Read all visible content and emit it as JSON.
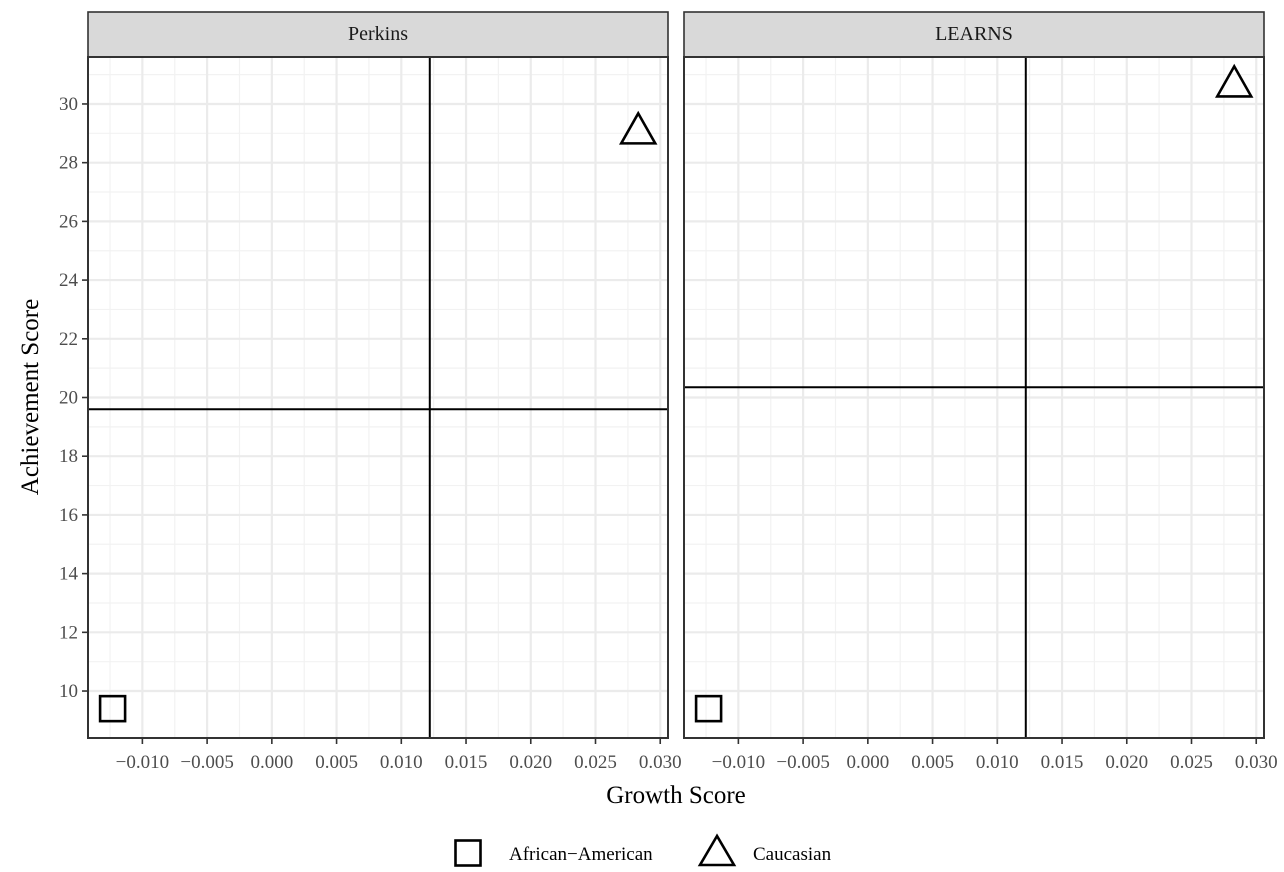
{
  "chart_data": {
    "type": "scatter",
    "xlabel": "Growth Score",
    "ylabel": "Achievement Score",
    "xlim": [
      -0.0142,
      0.0306
    ],
    "ylim": [
      8.4,
      31.6
    ],
    "x_ticks": [
      -0.01,
      -0.005,
      0.0,
      0.005,
      0.01,
      0.015,
      0.02,
      0.025,
      0.03
    ],
    "x_tick_labels": [
      "−0.010",
      "−0.005",
      "0.000",
      "0.005",
      "0.010",
      "0.015",
      "0.020",
      "0.025",
      "0.030"
    ],
    "y_ticks": [
      10,
      12,
      14,
      16,
      18,
      20,
      22,
      24,
      26,
      28,
      30
    ],
    "y_tick_labels": [
      "10",
      "12",
      "14",
      "16",
      "18",
      "20",
      "22",
      "24",
      "26",
      "28",
      "30"
    ],
    "grid": true,
    "legend_position": "bottom",
    "legend": [
      {
        "label": "African−American",
        "shape": "square"
      },
      {
        "label": "Caucasian",
        "shape": "triangle"
      }
    ],
    "panels": [
      {
        "title": "Perkins",
        "points": [
          {
            "group": "African−American",
            "shape": "square",
            "x": -0.0123,
            "y": 9.4
          },
          {
            "group": "Caucasian",
            "shape": "triangle",
            "x": 0.0283,
            "y": 29.1
          }
        ],
        "vline": 0.0122,
        "hline": 19.6
      },
      {
        "title": "LEARNS",
        "points": [
          {
            "group": "African−American",
            "shape": "square",
            "x": -0.0123,
            "y": 9.4
          },
          {
            "group": "Caucasian",
            "shape": "triangle",
            "x": 0.0283,
            "y": 30.7
          }
        ],
        "vline": 0.0122,
        "hline": 20.35
      }
    ]
  }
}
